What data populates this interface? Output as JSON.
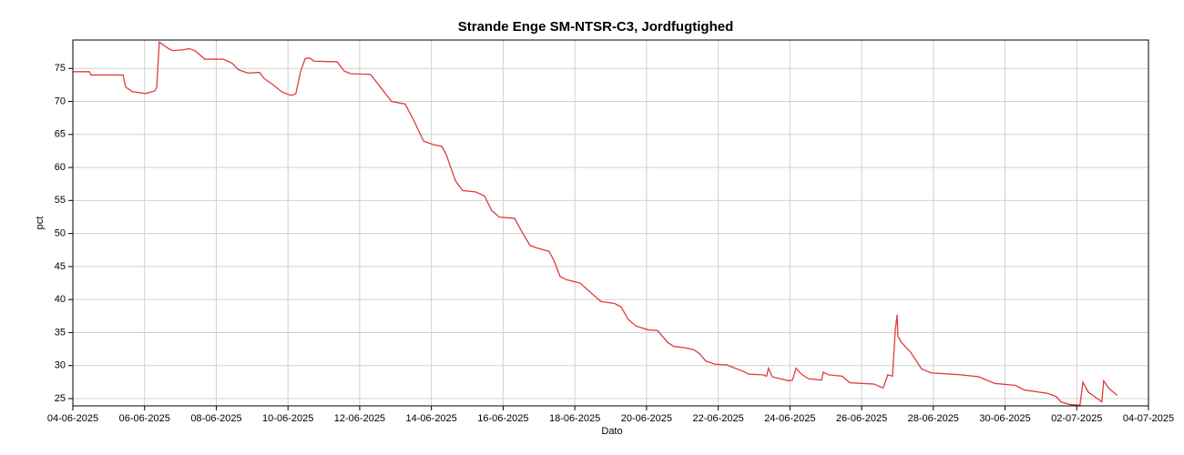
{
  "chart_data": {
    "type": "line",
    "title": "Strande Enge SM-NTSR-C3, Jordfugtighed",
    "x_label": "Dato",
    "y_label": "pct",
    "grid": true,
    "xlim": [
      0,
      30
    ],
    "xticks": [
      {
        "value": 0,
        "label": "04-06-2025"
      },
      {
        "value": 2,
        "label": "06-06-2025"
      },
      {
        "value": 4,
        "label": "08-06-2025"
      },
      {
        "value": 6,
        "label": "10-06-2025"
      },
      {
        "value": 8,
        "label": "12-06-2025"
      },
      {
        "value": 10,
        "label": "14-06-2025"
      },
      {
        "value": 12,
        "label": "16-06-2025"
      },
      {
        "value": 14,
        "label": "18-06-2025"
      },
      {
        "value": 16,
        "label": "20-06-2025"
      },
      {
        "value": 18,
        "label": "22-06-2025"
      },
      {
        "value": 20,
        "label": "24-06-2025"
      },
      {
        "value": 22,
        "label": "26-06-2025"
      },
      {
        "value": 24,
        "label": "28-06-2025"
      },
      {
        "value": 26,
        "label": "30-06-2025"
      },
      {
        "value": 28,
        "label": "02-07-2025"
      },
      {
        "value": 30,
        "label": "04-07-2025"
      }
    ],
    "ylim": [
      23.9,
      79.3
    ],
    "yticks": [
      25,
      30,
      35,
      40,
      45,
      50,
      55,
      60,
      65,
      70,
      75
    ],
    "series": [
      {
        "name": "Jordfugtighed",
        "color": "#e03c3c",
        "x": [
          0,
          0.46,
          0.51,
          1.4,
          1.47,
          1.65,
          2.03,
          2.29,
          2.34,
          2.41,
          2.67,
          2.79,
          3.05,
          3.25,
          3.43,
          3.68,
          4.19,
          4.44,
          4.62,
          4.88,
          5.21,
          5.33,
          5.59,
          5.84,
          6.1,
          6.22,
          6.35,
          6.48,
          6.6,
          6.73,
          7.37,
          7.57,
          7.75,
          8.3,
          8.46,
          8.89,
          9.27,
          9.52,
          9.78,
          10.03,
          10.29,
          10.41,
          10.67,
          10.87,
          11.23,
          11.48,
          11.68,
          11.89,
          12.32,
          12.5,
          12.75,
          12.95,
          13.28,
          13.41,
          13.59,
          13.77,
          14.15,
          14.35,
          14.73,
          15.11,
          15.29,
          15.49,
          15.7,
          16.05,
          16.31,
          16.59,
          16.76,
          17.07,
          17.32,
          17.48,
          17.65,
          17.91,
          18.24,
          18.42,
          18.67,
          18.85,
          19.25,
          19.35,
          19.4,
          19.51,
          19.96,
          20.07,
          20.17,
          20.32,
          20.52,
          20.88,
          20.93,
          21.08,
          21.46,
          21.67,
          22.35,
          22.6,
          22.73,
          22.86,
          22.94,
          22.99,
          23.01,
          23.11,
          23.37,
          23.67,
          23.93,
          24.51,
          24.77,
          25.27,
          25.4,
          25.71,
          26.29,
          26.54,
          27.18,
          27.43,
          27.56,
          27.81,
          28.09,
          28.17,
          28.32,
          28.7,
          28.75,
          28.9,
          29.13
        ],
        "values": [
          74.5,
          74.5,
          74.0,
          74.0,
          72.2,
          71.5,
          71.2,
          71.6,
          72.2,
          79.0,
          78.0,
          77.7,
          77.8,
          78.0,
          77.6,
          76.4,
          76.4,
          75.8,
          74.8,
          74.3,
          74.4,
          73.5,
          72.5,
          71.4,
          70.9,
          71.2,
          74.5,
          76.5,
          76.6,
          76.1,
          76.0,
          74.6,
          74.2,
          74.1,
          73.0,
          70.0,
          69.6,
          67.0,
          64.0,
          63.5,
          63.2,
          62.0,
          58.0,
          56.5,
          56.3,
          55.7,
          53.5,
          52.5,
          52.3,
          50.5,
          48.2,
          47.8,
          47.3,
          46.0,
          43.5,
          43.0,
          42.5,
          41.5,
          39.7,
          39.4,
          38.9,
          37.0,
          36.0,
          35.4,
          35.3,
          33.5,
          32.9,
          32.7,
          32.4,
          31.8,
          30.7,
          30.2,
          30.1,
          29.7,
          29.2,
          28.7,
          28.6,
          28.4,
          29.6,
          28.3,
          27.7,
          27.8,
          29.6,
          28.7,
          28.0,
          27.8,
          29.0,
          28.6,
          28.4,
          27.4,
          27.2,
          26.6,
          28.6,
          28.4,
          35.5,
          37.7,
          34.5,
          33.5,
          32.0,
          29.5,
          28.9,
          28.7,
          28.6,
          28.3,
          28.0,
          27.3,
          27.0,
          26.3,
          25.8,
          25.3,
          24.5,
          24.1,
          24.0,
          27.5,
          26.0,
          24.5,
          27.7,
          26.5,
          25.5
        ]
      }
    ]
  }
}
